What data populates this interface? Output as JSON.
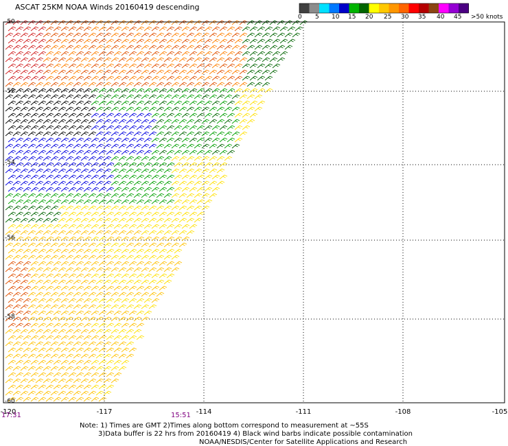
{
  "title": "ASCAT 25KM NOAA Winds 20160419 descending",
  "legend": {
    "labels": [
      "0",
      "5",
      "10",
      "15",
      "20",
      "25",
      "30",
      "35",
      "40",
      "45",
      ">50 knots"
    ],
    "colors": [
      "#404040",
      "#8c8c8c",
      "#00e0ff",
      "#0078ff",
      "#0000c8",
      "#00b400",
      "#006400",
      "#ffff00",
      "#ffc800",
      "#ff9600",
      "#ff6400",
      "#ff0000",
      "#b40000",
      "#8b4513",
      "#ff00ff",
      "#9400d3",
      "#4b0082"
    ]
  },
  "map": {
    "x_ticks": [
      "-120",
      "-117",
      "-114",
      "-111",
      "-108",
      "-105"
    ],
    "y_labels": [
      "-50",
      "-52",
      "-54",
      "-56",
      "-58",
      "-60"
    ],
    "time_labels": [
      "17:31",
      "15:51"
    ],
    "barb_color_key": {
      "black": "#000000",
      "blue": "#0000e0",
      "green": "#00a000",
      "darkgreen": "#006400",
      "yellow": "#ffe000",
      "gold": "#ffc000",
      "orange": "#ff8000",
      "darkorange": "#e05000",
      "red": "#d02020"
    }
  },
  "notes": {
    "line1": "Note: 1) Times are GMT 2)Times along bottom correspond to measurement at ~55S",
    "line2": "3)Data buffer is 22 hrs from 20160419 4) Black wind barbs indicate possible contamination",
    "line3": "NOAA/NESDIS/Center for Satellite Applications and Research"
  }
}
